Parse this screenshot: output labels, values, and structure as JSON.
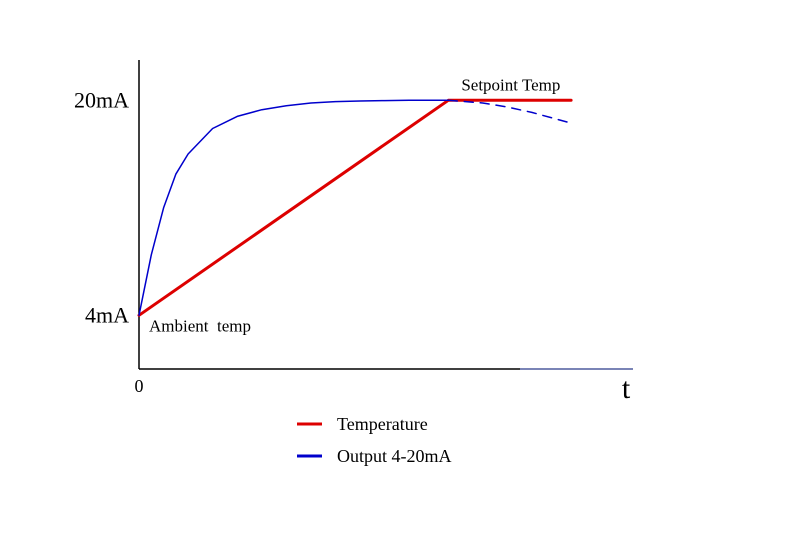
{
  "chart_data": {
    "type": "line",
    "title": "",
    "xlabel": "t",
    "ylabel": "",
    "x_origin_label": "0",
    "xlim": [
      0,
      10
    ],
    "ylim": [
      0,
      23
    ],
    "yticks": [
      {
        "value": 4,
        "label": "4mA"
      },
      {
        "value": 20,
        "label": "20mA"
      }
    ],
    "grid": false,
    "legend_position": "bottom-left",
    "series": [
      {
        "name": "Temperature",
        "color": "#dd0000",
        "style": "solid",
        "x": [
          0,
          6.3,
          8.8
        ],
        "y": [
          4,
          20,
          20
        ]
      },
      {
        "name": "Output 4-20mA",
        "color": "#0000cc",
        "style": "solid",
        "x": [
          0,
          0.25,
          0.5,
          0.75,
          1.0,
          1.5,
          2.0,
          2.5,
          3.0,
          3.5,
          4.0,
          4.5,
          5.0,
          5.5,
          6.0,
          6.3
        ],
        "y": [
          4,
          8.5,
          12.0,
          14.5,
          16.0,
          17.9,
          18.8,
          19.3,
          19.6,
          19.8,
          19.9,
          19.95,
          19.98,
          20.0,
          20.0,
          20.0
        ]
      },
      {
        "name": "",
        "color": "#0000cc",
        "style": "dashed",
        "x": [
          6.3,
          7.0,
          7.5,
          8.0,
          8.8
        ],
        "y": [
          20,
          19.8,
          19.5,
          19.1,
          18.3
        ]
      }
    ],
    "annotations": [
      {
        "text": "Setpoint Temp",
        "x": 6.3,
        "y": 20
      },
      {
        "text": "Ambient  temp",
        "x": 0,
        "y": 4
      }
    ]
  }
}
